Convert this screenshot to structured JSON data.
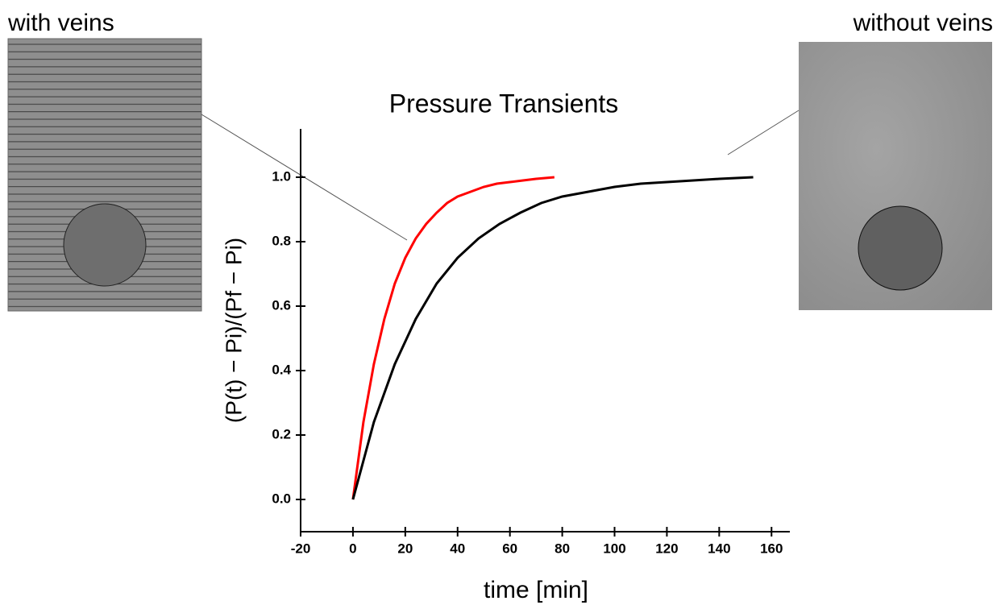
{
  "chart_data": {
    "type": "line",
    "title": "Pressure Transients",
    "xlabel": "time [min]",
    "ylabel": "(P(t) − Pi)/(Pf − Pi)",
    "inset_left_label": "with veins",
    "inset_right_label": "without veins",
    "xlim": [
      -20,
      167
    ],
    "xticks": [
      -20,
      0,
      20,
      40,
      60,
      80,
      100,
      120,
      140,
      160
    ],
    "ylim": [
      -0.1,
      1.15
    ],
    "yticks": [
      {
        "value": 0,
        "label": "0.0"
      },
      0.2,
      0.4,
      0.6,
      0.8,
      {
        "value": 1,
        "label": "1.0"
      }
    ],
    "series": [
      {
        "color": "#ff0000",
        "x": [
          0,
          4,
          8,
          12,
          16,
          20,
          24,
          28,
          32,
          36,
          40,
          45,
          50,
          55,
          60,
          65,
          70,
          77
        ],
        "values": [
          0,
          0.24,
          0.42,
          0.56,
          0.67,
          0.75,
          0.81,
          0.855,
          0.89,
          0.92,
          0.94,
          0.955,
          0.97,
          0.98,
          0.985,
          0.99,
          0.995,
          1.0
        ]
      },
      {
        "color": "#000000",
        "x": [
          0,
          8,
          16,
          24,
          32,
          40,
          48,
          56,
          64,
          72,
          80,
          90,
          100,
          110,
          120,
          130,
          140,
          153
        ],
        "values": [
          0,
          0.24,
          0.42,
          0.56,
          0.67,
          0.75,
          0.81,
          0.855,
          0.89,
          0.92,
          0.94,
          0.955,
          0.97,
          0.98,
          0.985,
          0.99,
          0.995,
          1.0
        ]
      }
    ]
  }
}
